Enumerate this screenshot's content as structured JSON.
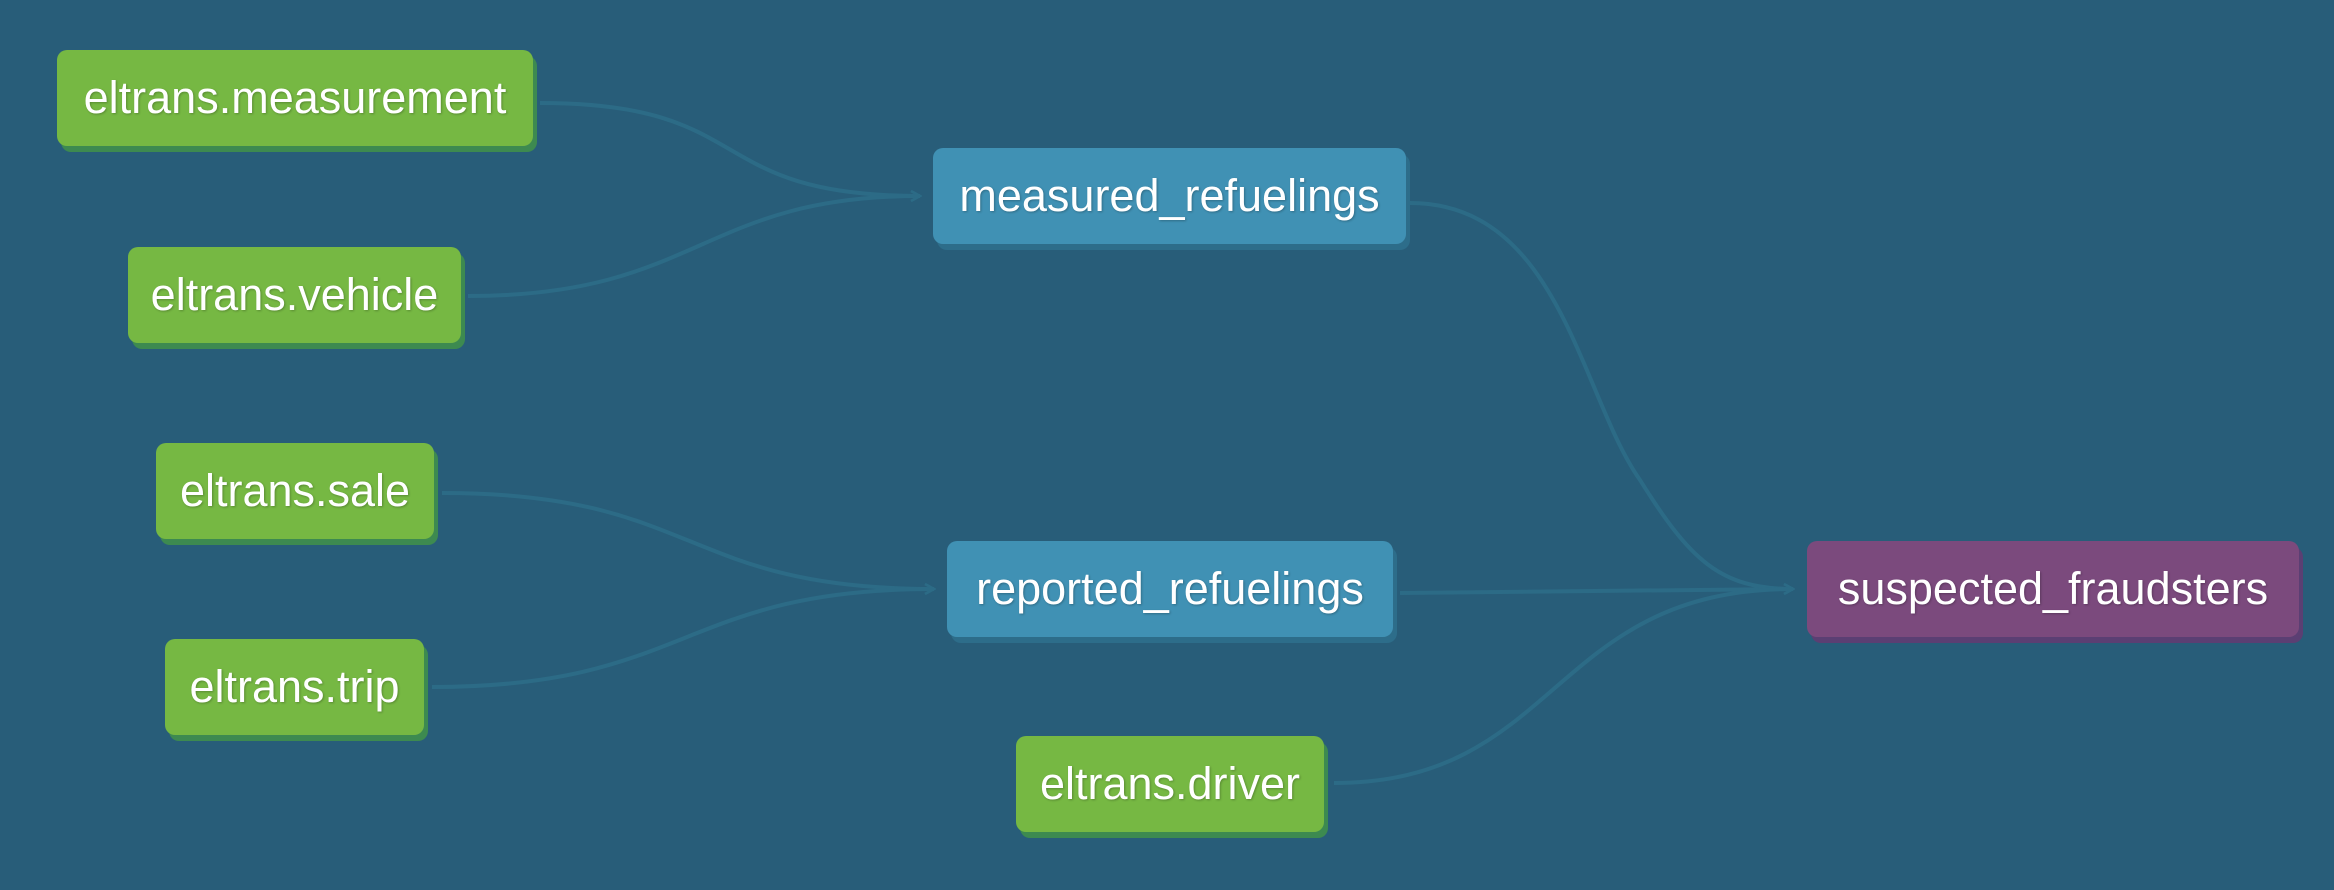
{
  "colors": {
    "background": "#285d79",
    "source_node": "#76b843",
    "model_node": "#4091b4",
    "exposure_node": "#7b4a7d",
    "edge": "#2c6b86"
  },
  "nodes": {
    "measurement": "eltrans.measurement",
    "vehicle": "eltrans.vehicle",
    "sale": "eltrans.sale",
    "trip": "eltrans.trip",
    "measured_refuelings": "measured_refuelings",
    "reported_refuelings": "reported_refuelings",
    "driver": "eltrans.driver",
    "suspected_fraudsters": "suspected_fraudsters"
  },
  "edges": [
    {
      "from": "eltrans.measurement",
      "to": "measured_refuelings"
    },
    {
      "from": "eltrans.vehicle",
      "to": "measured_refuelings"
    },
    {
      "from": "eltrans.sale",
      "to": "reported_refuelings"
    },
    {
      "from": "eltrans.trip",
      "to": "reported_refuelings"
    },
    {
      "from": "measured_refuelings",
      "to": "suspected_fraudsters"
    },
    {
      "from": "reported_refuelings",
      "to": "suspected_fraudsters"
    },
    {
      "from": "eltrans.driver",
      "to": "suspected_fraudsters"
    }
  ]
}
